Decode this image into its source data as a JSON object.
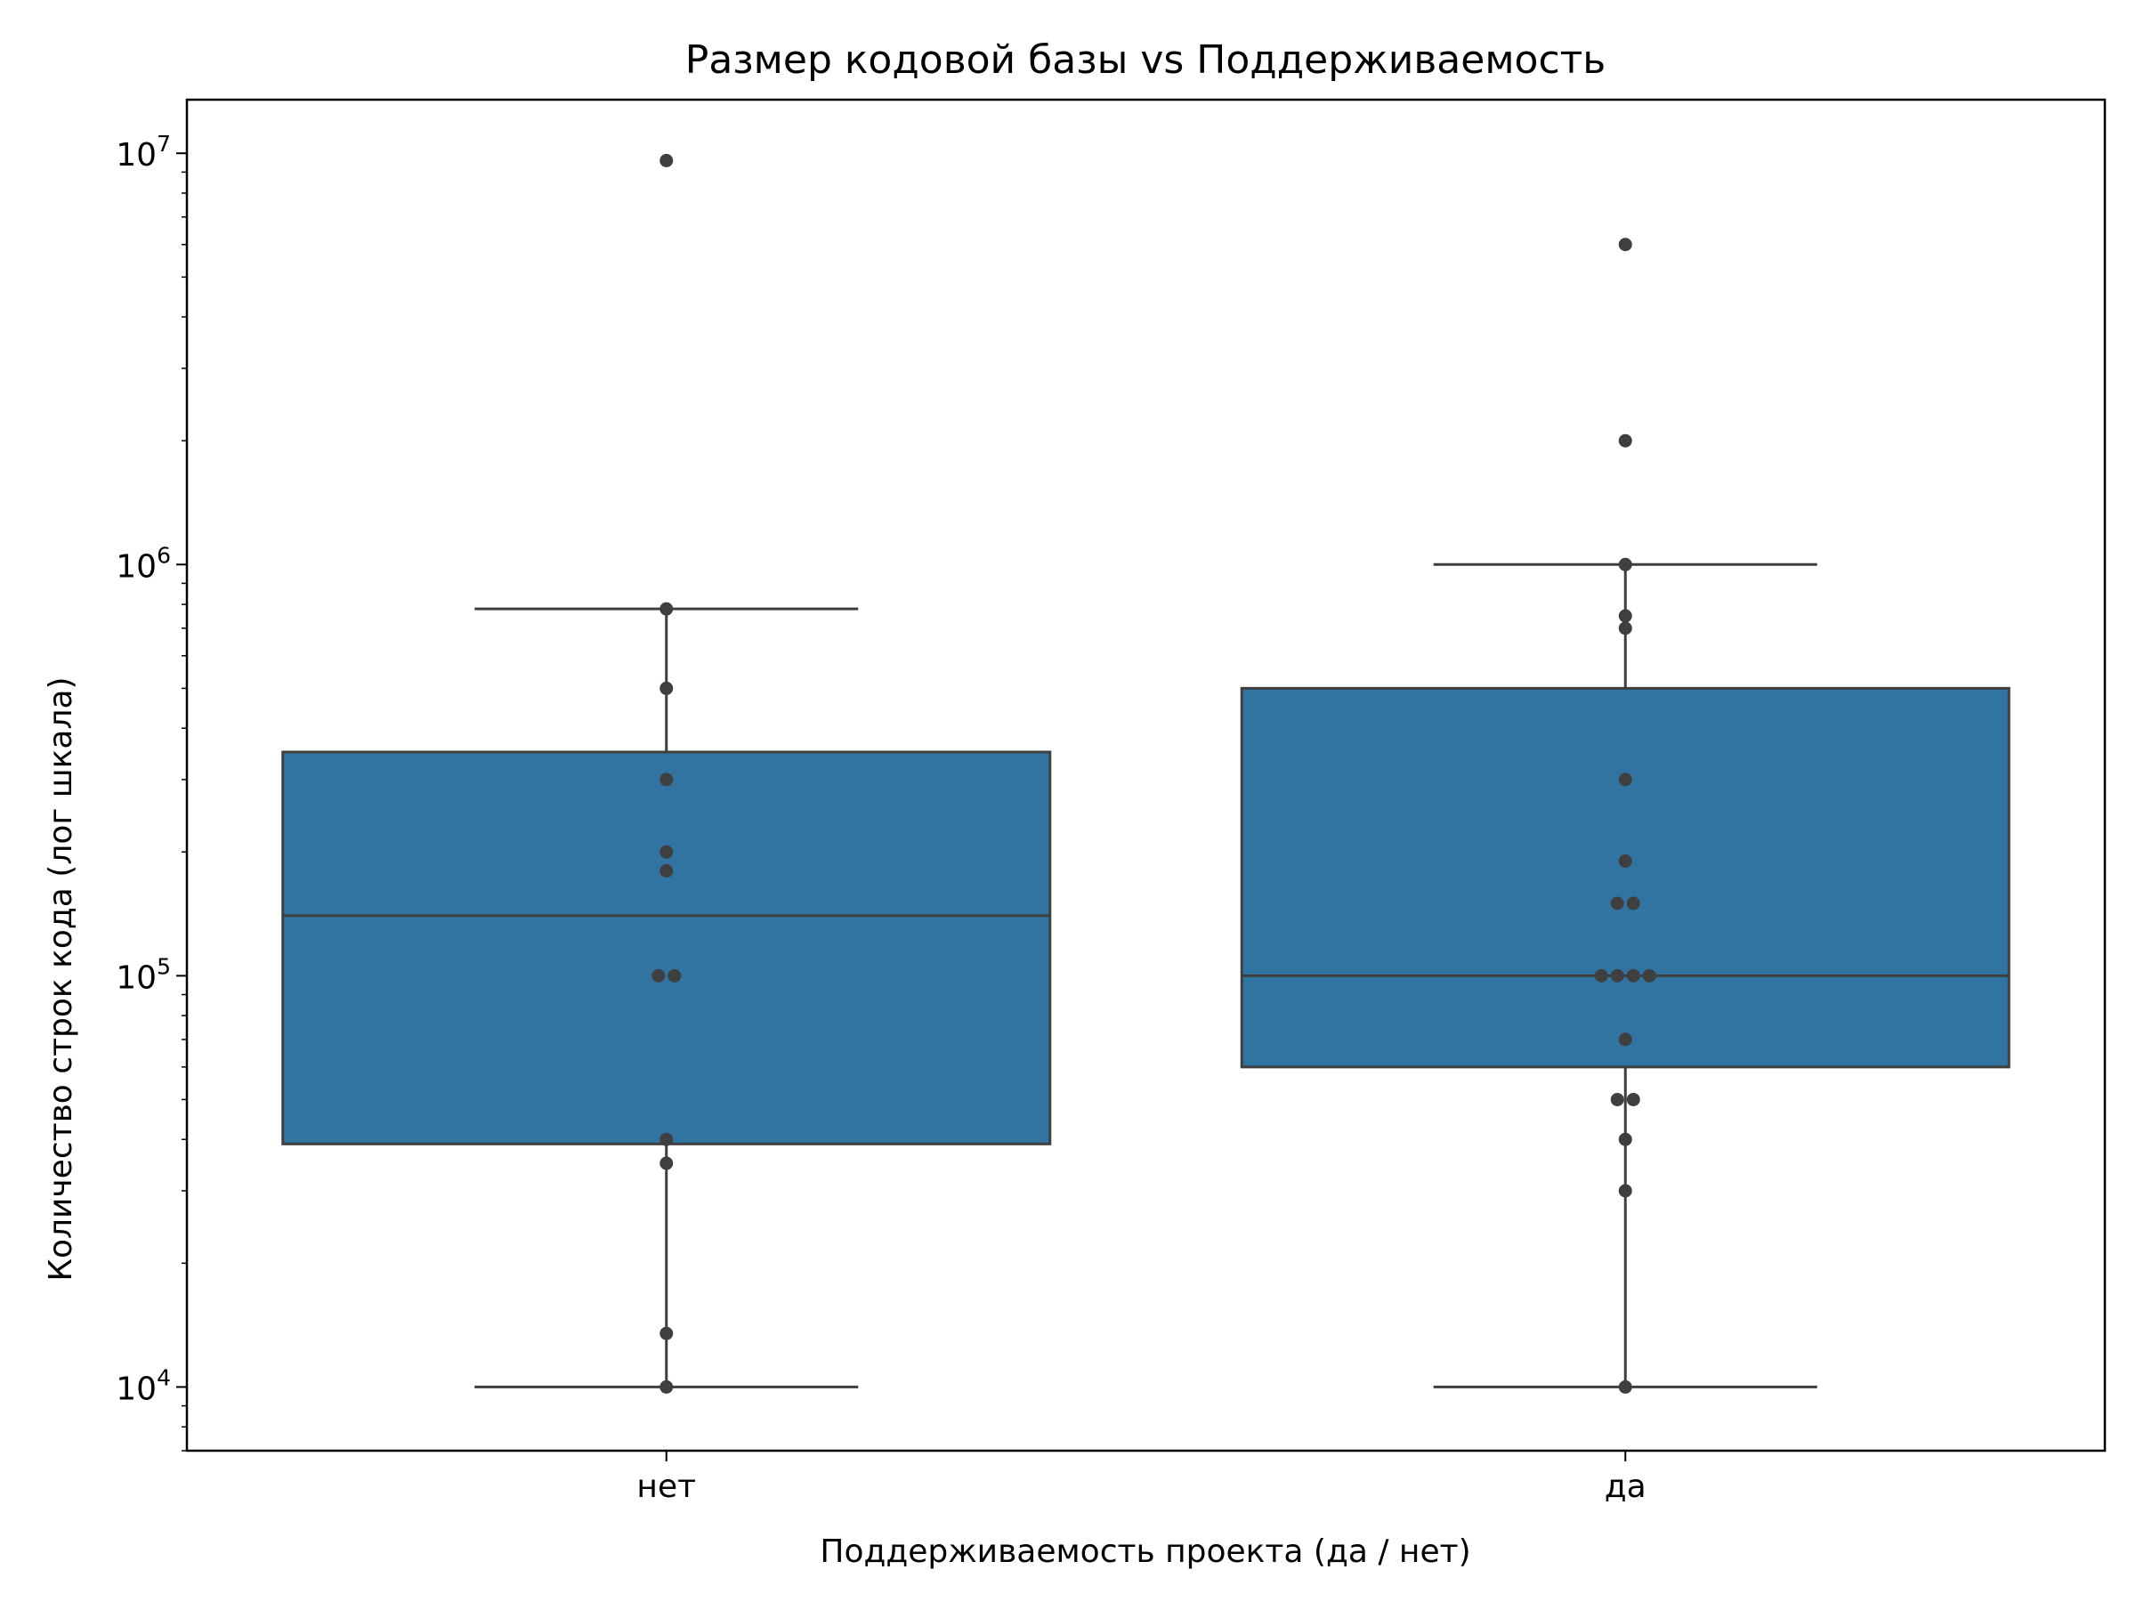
{
  "chart_data": {
    "type": "box",
    "title": "Размер кодовой базы vs Поддерживаемость",
    "xlabel": "Поддерживаемость проекта (да / нет)",
    "ylabel": "Количество строк кода (лог шкала)",
    "yscale": "log",
    "ylim": [
      7000,
      13500000
    ],
    "yticks": [
      {
        "value": 10000,
        "base": "10",
        "exp": "4"
      },
      {
        "value": 100000,
        "base": "10",
        "exp": "5"
      },
      {
        "value": 1000000,
        "base": "10",
        "exp": "6"
      },
      {
        "value": 10000000,
        "base": "10",
        "exp": "7"
      }
    ],
    "categories": [
      "нет",
      "да"
    ],
    "boxes": [
      {
        "category": "нет",
        "q1": 39000,
        "median": 140000,
        "q3": 350000,
        "whisker_low": 10000,
        "whisker_high": 780000,
        "points": [
          9600000,
          780000,
          500000,
          300000,
          200000,
          180000,
          100000,
          100000,
          40000,
          35000,
          13500,
          10000
        ]
      },
      {
        "category": "да",
        "q1": 60000,
        "median": 100000,
        "q3": 500000,
        "whisker_low": 10000,
        "whisker_high": 1000000,
        "points": [
          6000000,
          2000000,
          1000000,
          750000,
          700000,
          300000,
          190000,
          150000,
          150000,
          100000,
          100000,
          100000,
          100000,
          70000,
          50000,
          50000,
          40000,
          30000,
          10000
        ]
      }
    ],
    "grid": false,
    "colors": {
      "box_fill": "#3274a1",
      "box_edge": "#3f3f3f",
      "point": "#3f3f3f"
    }
  }
}
